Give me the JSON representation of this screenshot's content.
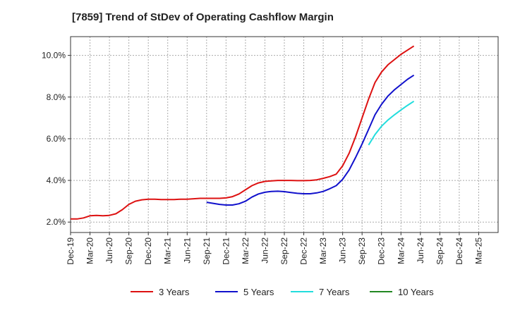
{
  "chart_data": {
    "type": "line",
    "title": "[7859]  Trend of StDev of Operating Cashflow Margin",
    "xlabel": "",
    "ylabel": "",
    "x_ticks": [
      "Dec-19",
      "Mar-20",
      "Jun-20",
      "Sep-20",
      "Dec-20",
      "Mar-21",
      "Jun-21",
      "Sep-21",
      "Dec-21",
      "Mar-22",
      "Jun-22",
      "Sep-22",
      "Dec-22",
      "Mar-23",
      "Jun-23",
      "Sep-23",
      "Dec-23",
      "Mar-24",
      "Jun-24",
      "Sep-24",
      "Dec-24",
      "Mar-25"
    ],
    "y_ticks": [
      "2.0%",
      "4.0%",
      "6.0%",
      "8.0%",
      "10.0%"
    ],
    "y_tick_values": [
      2.0,
      4.0,
      6.0,
      8.0,
      10.0
    ],
    "ylim": [
      1.5,
      10.9
    ],
    "grid": true,
    "legend_position": "bottom",
    "series": [
      {
        "name": "3 Years",
        "color": "#dd1111",
        "values": [
          2.15,
          2.15,
          2.2,
          2.3,
          2.32,
          2.3,
          2.32,
          2.4,
          2.6,
          2.85,
          3.0,
          3.07,
          3.1,
          3.1,
          3.08,
          3.08,
          3.08,
          3.1,
          3.1,
          3.12,
          3.14,
          3.14,
          3.14,
          3.14,
          3.16,
          3.22,
          3.35,
          3.55,
          3.75,
          3.88,
          3.95,
          3.98,
          4.0,
          4.0,
          4.0,
          3.99,
          3.99,
          4.0,
          4.03,
          4.1,
          4.18,
          4.3,
          4.7,
          5.3,
          6.1,
          7.0,
          7.9,
          8.7,
          9.2,
          9.55,
          9.8,
          10.05,
          10.25,
          10.45
        ]
      },
      {
        "name": "5 Years",
        "color": "#1111cc",
        "values": [
          null,
          null,
          null,
          null,
          null,
          null,
          null,
          null,
          null,
          null,
          null,
          null,
          null,
          null,
          null,
          null,
          null,
          null,
          null,
          null,
          null,
          2.95,
          2.9,
          2.85,
          2.82,
          2.82,
          2.88,
          3.0,
          3.2,
          3.35,
          3.43,
          3.47,
          3.48,
          3.46,
          3.42,
          3.38,
          3.36,
          3.36,
          3.4,
          3.47,
          3.6,
          3.75,
          4.05,
          4.5,
          5.1,
          5.75,
          6.45,
          7.15,
          7.65,
          8.05,
          8.35,
          8.6,
          8.85,
          9.05
        ]
      },
      {
        "name": "7 Years",
        "color": "#22dddd",
        "values": [
          null,
          null,
          null,
          null,
          null,
          null,
          null,
          null,
          null,
          null,
          null,
          null,
          null,
          null,
          null,
          null,
          null,
          null,
          null,
          null,
          null,
          null,
          null,
          null,
          null,
          null,
          null,
          null,
          null,
          null,
          null,
          null,
          null,
          null,
          null,
          null,
          null,
          null,
          null,
          null,
          null,
          null,
          null,
          null,
          null,
          null,
          5.7,
          6.2,
          6.6,
          6.9,
          7.15,
          7.38,
          7.6,
          7.8
        ]
      },
      {
        "name": "10 Years",
        "color": "#228822",
        "values": []
      }
    ]
  }
}
